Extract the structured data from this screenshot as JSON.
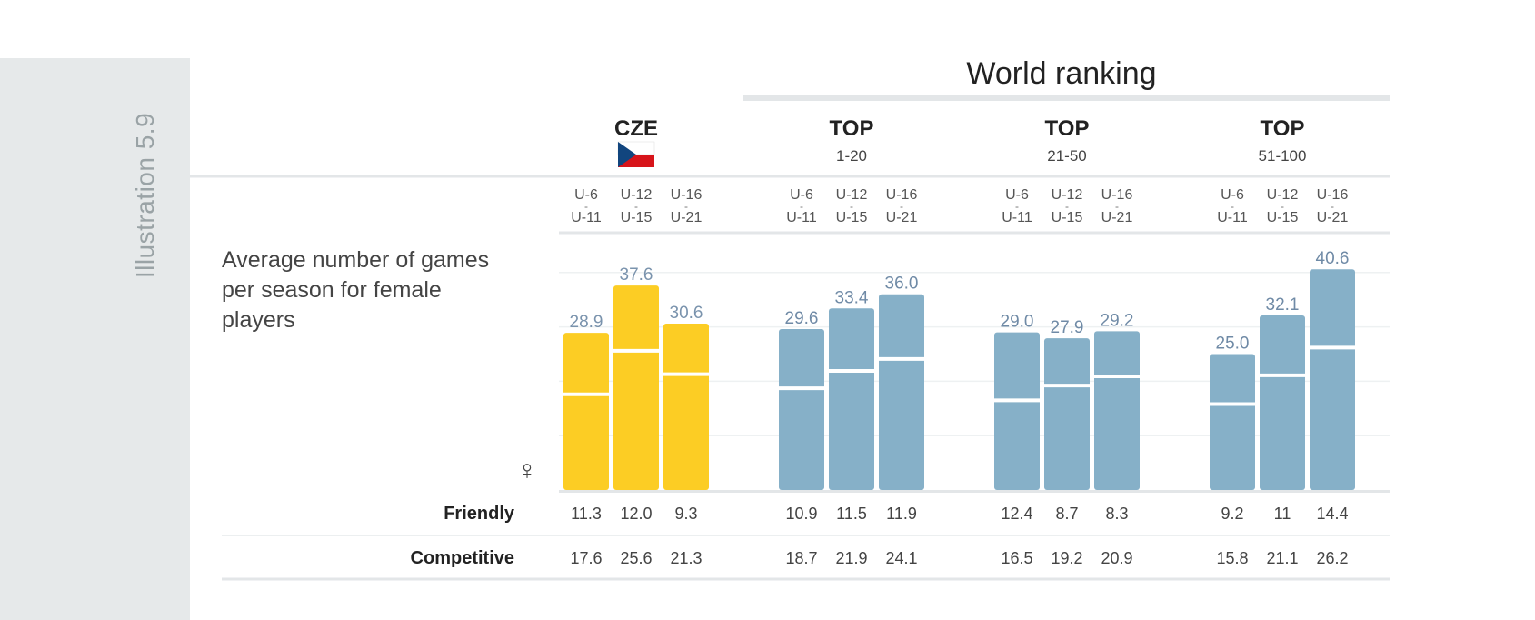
{
  "illustration_label": "Illustration 5.9",
  "world_ranking_title": "World ranking",
  "description": "Average number of games per season for female players",
  "female_symbol": "♀",
  "age_groups": [
    {
      "top": "U-6",
      "dash": "-",
      "bottom": "U-11"
    },
    {
      "top": "U-12",
      "dash": "-",
      "bottom": "U-15"
    },
    {
      "top": "U-16",
      "dash": "-",
      "bottom": "U-21"
    }
  ],
  "row_labels": {
    "friendly": "Friendly",
    "competitive": "Competitive"
  },
  "colors": {
    "cze": "#fccd24",
    "top": "#86b0c8",
    "label_top": "#6f8aa6",
    "label_cze": "#7a93ad",
    "sidebar": "#e6e9ea"
  },
  "chart_data": {
    "type": "bar",
    "stacked": true,
    "groups": [
      {
        "title": "CZE",
        "subtitle": "",
        "flag": "czech-flag",
        "totals": [
          "28.9",
          "37.6",
          "30.6"
        ],
        "friendly": [
          "11.3",
          "12.0",
          "9.3"
        ],
        "competitive": [
          "17.6",
          "25.6",
          "21.3"
        ]
      },
      {
        "title": "TOP",
        "subtitle": "1-20",
        "totals": [
          "29.6",
          "33.4",
          "36.0"
        ],
        "friendly": [
          "10.9",
          "11.5",
          "11.9"
        ],
        "competitive": [
          "18.7",
          "21.9",
          "24.1"
        ]
      },
      {
        "title": "TOP",
        "subtitle": "21-50",
        "totals": [
          "29.0",
          "27.9",
          "29.2"
        ],
        "friendly": [
          "12.4",
          "8.7",
          "8.3"
        ],
        "competitive": [
          "16.5",
          "19.2",
          "20.9"
        ]
      },
      {
        "title": "TOP",
        "subtitle": "51-100",
        "totals": [
          "25.0",
          "32.1",
          "40.6"
        ],
        "friendly": [
          "9.2",
          "11",
          "14.4"
        ],
        "competitive": [
          "15.8",
          "21.1",
          "26.2"
        ]
      }
    ],
    "series": [
      {
        "name": "Competitive"
      },
      {
        "name": "Friendly"
      }
    ],
    "grid": true
  }
}
